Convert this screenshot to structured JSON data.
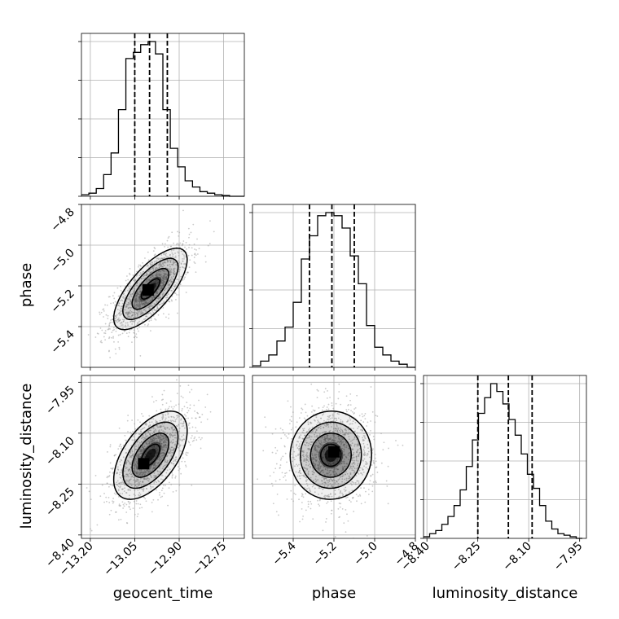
{
  "chart_data": {
    "type": "corner",
    "parameters": [
      "geocent_time",
      "phase",
      "luminosity_distance"
    ],
    "axis_labels": {
      "geocent_time": "geocent_time",
      "phase": "phase",
      "luminosity_distance": "luminosity_distance"
    },
    "ranges": {
      "geocent_time": [
        -13.23,
        -12.68
      ],
      "phase": [
        -5.6,
        -4.8
      ],
      "luminosity_distance": [
        -8.41,
        -7.93
      ]
    },
    "ticks": {
      "geocent_time": [
        -13.2,
        -13.05,
        -12.9,
        -12.75
      ],
      "phase": [
        -5.4,
        -5.2,
        -5.0,
        -4.8
      ],
      "luminosity_distance": [
        -8.4,
        -8.25,
        -8.1,
        -7.95
      ]
    },
    "tick_labels": {
      "geocent_time": [
        "−13.20",
        "−13.05",
        "−12.90",
        "−12.75"
      ],
      "phase": [
        "−5.4",
        "−5.2",
        "−5.0",
        "−4.8"
      ],
      "luminosity_distance": [
        "−8.40",
        "−8.25",
        "−8.10",
        "−7.95"
      ]
    },
    "phase_y_tick_labels": [
      "−4.8",
      "−5.0",
      "−5.2",
      "−5.4"
    ],
    "lumdist_y_tick_labels": [
      "−7.95",
      "−8.10",
      "−8.25",
      "−8.40"
    ],
    "quantile_lines": {
      "geocent_time": [
        -13.05,
        -13.0,
        -12.94
      ],
      "phase": [
        -5.32,
        -5.21,
        -5.1
      ],
      "luminosity_distance": [
        -8.25,
        -8.16,
        -8.09
      ]
    },
    "histograms": {
      "geocent_time": {
        "bin_edges": [
          -13.23,
          -13.205,
          -13.18,
          -13.155,
          -13.13,
          -13.105,
          -13.08,
          -13.055,
          -13.03,
          -13.005,
          -12.98,
          -12.955,
          -12.93,
          -12.905,
          -12.88,
          -12.855,
          -12.83,
          -12.805,
          -12.78,
          -12.755,
          -12.73,
          -12.705,
          -12.68
        ],
        "density": [
          0.01,
          0.02,
          0.05,
          0.14,
          0.28,
          0.56,
          0.89,
          0.93,
          0.98,
          1.0,
          0.92,
          0.56,
          0.31,
          0.19,
          0.1,
          0.06,
          0.03,
          0.02,
          0.01,
          0.005,
          0,
          0
        ]
      },
      "phase": {
        "bin_edges": [
          -5.6,
          -5.56,
          -5.52,
          -5.48,
          -5.44,
          -5.4,
          -5.36,
          -5.32,
          -5.28,
          -5.24,
          -5.2,
          -5.16,
          -5.12,
          -5.08,
          -5.04,
          -5.0,
          -4.96,
          -4.92,
          -4.88,
          -4.84,
          -4.8
        ],
        "density": [
          0.01,
          0.04,
          0.08,
          0.17,
          0.26,
          0.42,
          0.7,
          0.85,
          0.98,
          1.0,
          0.98,
          0.9,
          0.72,
          0.54,
          0.27,
          0.13,
          0.08,
          0.04,
          0.02,
          0
        ]
      },
      "luminosity_distance": {
        "bin_edges": [
          -8.41,
          -8.392,
          -8.374,
          -8.356,
          -8.338,
          -8.32,
          -8.302,
          -8.284,
          -8.266,
          -8.248,
          -8.23,
          -8.212,
          -8.194,
          -8.176,
          -8.158,
          -8.14,
          -8.122,
          -8.104,
          -8.086,
          -8.068,
          -8.05,
          -8.032,
          -8.014,
          -7.996,
          -7.978,
          -7.96,
          -7.942
        ],
        "density": [
          0.01,
          0.03,
          0.05,
          0.09,
          0.14,
          0.21,
          0.31,
          0.46,
          0.63,
          0.8,
          0.9,
          0.99,
          0.94,
          0.86,
          0.76,
          0.66,
          0.54,
          0.41,
          0.32,
          0.21,
          0.11,
          0.06,
          0.03,
          0.02,
          0.01,
          0
        ]
      }
    },
    "joint_distributions": {
      "phase_vs_geocent_time": {
        "mean": [
          -12.997,
          -5.215
        ],
        "sd": [
          0.062,
          0.1
        ],
        "correlation": 0.72,
        "peak": [
          -13.005,
          -5.22
        ]
      },
      "luminosity_distance_vs_geocent_time": {
        "mean": [
          -12.997,
          -8.165
        ],
        "sd": [
          0.062,
          0.065
        ],
        "correlation": 0.55,
        "peak": [
          -13.02,
          -8.19
        ]
      },
      "luminosity_distance_vs_phase": {
        "mean": [
          -5.215,
          -8.165
        ],
        "sd": [
          0.1,
          0.065
        ],
        "correlation": 0.02,
        "peak": [
          -5.2,
          -8.155
        ]
      }
    },
    "contour_levels_sigma": [
      0.5,
      1.0,
      1.5,
      2.0
    ],
    "grid": true,
    "colors": {
      "line": "#000000",
      "grid": "#b0b0b0",
      "scatter": "#9e9e9e",
      "density": "#000000"
    }
  }
}
